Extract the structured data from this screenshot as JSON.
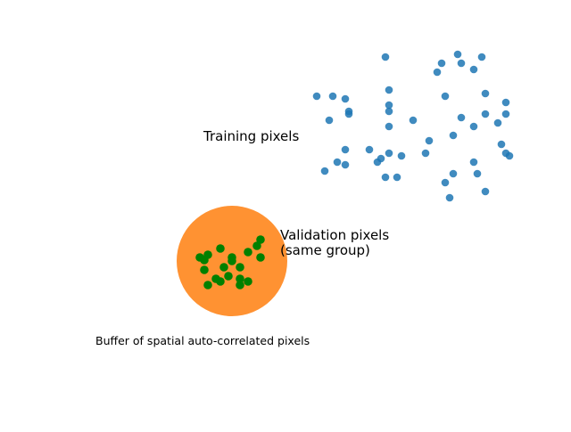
{
  "labels": {
    "training": "Training pixels",
    "validation_line1": "Validation pixels",
    "validation_line2": "(same group)",
    "buffer": "Buffer of spatial auto-correlated pixels"
  },
  "colors": {
    "training": "#1f77b4",
    "validation": "#008000",
    "buffer": "#ff7f0e",
    "background": "#ffffff"
  },
  "chart_data": {
    "type": "scatter",
    "series": [
      {
        "points": [
          [
            432,
            64
          ],
          [
            513,
            61
          ],
          [
            540,
            64
          ],
          [
            495,
            71
          ],
          [
            517,
            71
          ],
          [
            531,
            78
          ],
          [
            490,
            81
          ],
          [
            436,
            101
          ],
          [
            355,
            108
          ],
          [
            373,
            108
          ],
          [
            387,
            111
          ],
          [
            499,
            108
          ],
          [
            544,
            105
          ],
          [
            567,
            115
          ],
          [
            436,
            118
          ],
          [
            391,
            125
          ],
          [
            391,
            128
          ],
          [
            436,
            125
          ],
          [
            544,
            128
          ],
          [
            567,
            128
          ],
          [
            369,
            135
          ],
          [
            463,
            135
          ],
          [
            517,
            132
          ],
          [
            558,
            138
          ],
          [
            436,
            142
          ],
          [
            531,
            142
          ],
          [
            508,
            152
          ],
          [
            481,
            158
          ],
          [
            562,
            162
          ],
          [
            387,
            168
          ],
          [
            414,
            168
          ],
          [
            436,
            172
          ],
          [
            477,
            172
          ],
          [
            450,
            175
          ],
          [
            567,
            172
          ],
          [
            571,
            175
          ],
          [
            427,
            178
          ],
          [
            423,
            182
          ],
          [
            378,
            182
          ],
          [
            387,
            185
          ],
          [
            531,
            182
          ],
          [
            364,
            192
          ],
          [
            508,
            195
          ],
          [
            535,
            195
          ],
          [
            432,
            199
          ],
          [
            445,
            199
          ],
          [
            499,
            205
          ],
          [
            544,
            215
          ],
          [
            504,
            222
          ]
        ]
      },
      {
        "points": [
          [
            292,
            269
          ],
          [
            288,
            276
          ],
          [
            247,
            279
          ],
          [
            278,
            283
          ],
          [
            233,
            286
          ],
          [
            224,
            289
          ],
          [
            260,
            289
          ],
          [
            229,
            292
          ],
          [
            292,
            289
          ],
          [
            260,
            293
          ],
          [
            251,
            300
          ],
          [
            269,
            300
          ],
          [
            229,
            303
          ],
          [
            256,
            310
          ],
          [
            242,
            313
          ],
          [
            247,
            316
          ],
          [
            269,
            313
          ],
          [
            278,
            316
          ],
          [
            233,
            320
          ],
          [
            269,
            320
          ]
        ]
      }
    ],
    "regions": [
      {
        "cx": 260,
        "cy": 293,
        "r": 62
      }
    ]
  }
}
